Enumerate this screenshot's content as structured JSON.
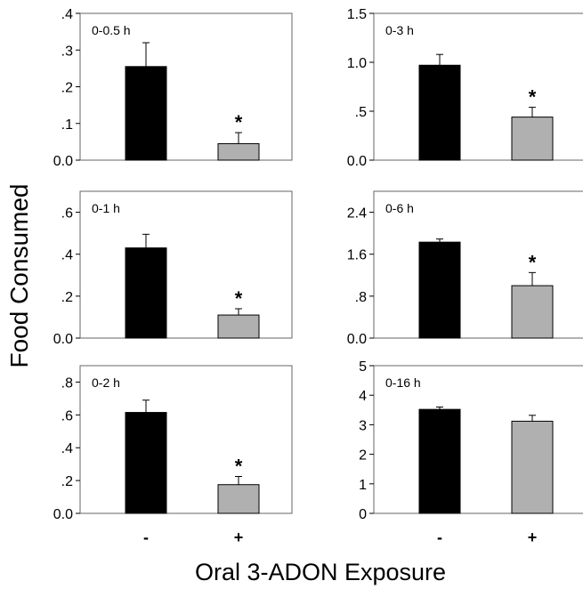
{
  "figure": {
    "y_axis_label": "Food Consumed",
    "x_axis_label": "Oral 3-ADON Exposure",
    "x_tick_labels": [
      "-",
      "+"
    ],
    "bar_colors": [
      "#000000",
      "#b0b0b0"
    ]
  },
  "chart_data": [
    {
      "type": "bar",
      "title": "0-0.5 h",
      "categories": [
        "-",
        "+"
      ],
      "values": [
        0.255,
        0.045
      ],
      "errors": [
        0.065,
        0.03
      ],
      "significant": [
        false,
        true
      ],
      "annotation": "*",
      "ylim": [
        0,
        0.4
      ],
      "yticks": [
        0,
        0.1,
        0.2,
        0.3,
        0.4
      ],
      "ytick_labels": [
        "0.0",
        ".1",
        ".2",
        ".3",
        ".4"
      ]
    },
    {
      "type": "bar",
      "title": "0-3 h",
      "categories": [
        "-",
        "+"
      ],
      "values": [
        0.97,
        0.44
      ],
      "errors": [
        0.11,
        0.1
      ],
      "significant": [
        false,
        true
      ],
      "annotation": "*",
      "ylim": [
        0,
        1.5
      ],
      "yticks": [
        0,
        0.5,
        1.0,
        1.5
      ],
      "ytick_labels": [
        "0.0",
        ".5",
        "1.0",
        "1.5"
      ]
    },
    {
      "type": "bar",
      "title": "0-1 h",
      "categories": [
        "-",
        "+"
      ],
      "values": [
        0.43,
        0.11
      ],
      "errors": [
        0.065,
        0.03
      ],
      "significant": [
        false,
        true
      ],
      "annotation": "*",
      "ylim": [
        0,
        0.7
      ],
      "yticks": [
        0,
        0.2,
        0.4,
        0.6
      ],
      "ytick_labels": [
        "0.0",
        ".2",
        ".4",
        ".6"
      ]
    },
    {
      "type": "bar",
      "title": "0-6 h",
      "categories": [
        "-",
        "+"
      ],
      "values": [
        1.83,
        1.0
      ],
      "errors": [
        0.06,
        0.25
      ],
      "significant": [
        false,
        true
      ],
      "annotation": "*",
      "ylim": [
        0,
        2.8
      ],
      "yticks": [
        0,
        0.8,
        1.6,
        2.4
      ],
      "ytick_labels": [
        "0.0",
        ".8",
        "1.6",
        "2.4"
      ]
    },
    {
      "type": "bar",
      "title": "0-2 h",
      "categories": [
        "-",
        "+"
      ],
      "values": [
        0.615,
        0.175
      ],
      "errors": [
        0.075,
        0.05
      ],
      "significant": [
        false,
        true
      ],
      "annotation": "*",
      "ylim": [
        0,
        0.9
      ],
      "yticks": [
        0,
        0.2,
        0.4,
        0.6,
        0.8
      ],
      "ytick_labels": [
        "0.0",
        ".2",
        ".4",
        ".6",
        ".8"
      ]
    },
    {
      "type": "bar",
      "title": "0-16 h",
      "categories": [
        "-",
        "+"
      ],
      "values": [
        3.52,
        3.12
      ],
      "errors": [
        0.08,
        0.2
      ],
      "significant": [
        false,
        false
      ],
      "annotation": "*",
      "ylim": [
        0,
        5
      ],
      "yticks": [
        0,
        1,
        2,
        3,
        4,
        5
      ],
      "ytick_labels": [
        "0",
        "1",
        "2",
        "3",
        "4",
        "5"
      ]
    }
  ]
}
